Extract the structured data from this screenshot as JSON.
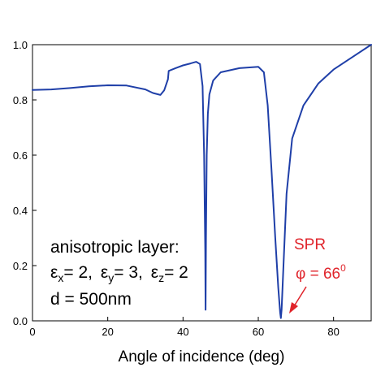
{
  "chart_data": {
    "type": "line",
    "title": "",
    "xlabel": "Angle of incidence (deg)",
    "ylabel": "",
    "xlim": [
      0,
      90
    ],
    "ylim": [
      0.0,
      1.0
    ],
    "x_ticks": [
      0,
      20,
      40,
      60,
      80
    ],
    "x_tick_labels": [
      "0",
      "20",
      "40",
      "60",
      "80"
    ],
    "y_ticks": [
      0.0,
      0.2,
      0.4,
      0.6,
      0.8,
      1.0
    ],
    "y_tick_labels": [
      "0.0",
      "0.2",
      "0.4",
      "0.6",
      "0.8",
      "1.0"
    ],
    "grid": false,
    "line_color": "#1f3fa8",
    "series": [
      {
        "x": [
          0,
          5,
          10,
          15,
          20,
          25,
          30,
          32,
          34,
          35,
          36,
          36.2,
          38,
          40,
          42,
          43.5,
          44.5,
          45.2,
          45.6,
          45.9,
          46.0,
          46.1,
          46.3,
          46.6,
          47,
          48,
          50,
          55,
          60,
          61.5,
          62.5,
          63.5,
          64.5,
          65.3,
          65.8,
          66.0,
          66.2,
          66.7,
          67.5,
          69,
          72,
          76,
          80,
          85,
          90
        ],
        "y": [
          0.836,
          0.838,
          0.843,
          0.849,
          0.853,
          0.852,
          0.838,
          0.825,
          0.818,
          0.835,
          0.875,
          0.905,
          0.915,
          0.925,
          0.932,
          0.938,
          0.93,
          0.85,
          0.6,
          0.25,
          0.04,
          0.3,
          0.6,
          0.75,
          0.82,
          0.87,
          0.9,
          0.915,
          0.92,
          0.9,
          0.78,
          0.55,
          0.3,
          0.12,
          0.03,
          0.01,
          0.04,
          0.2,
          0.46,
          0.66,
          0.78,
          0.86,
          0.91,
          0.955,
          1.0
        ]
      }
    ],
    "annotations": {
      "layer_line1": "anisotropic layer:",
      "eps_x_symbol": "ε",
      "eps_x_sub": "x",
      "eps_x_val": "= 2,",
      "eps_y_symbol": "ε",
      "eps_y_sub": "y",
      "eps_y_val": "= 3,",
      "eps_z_symbol": "ε",
      "eps_z_sub": "z",
      "eps_z_val": "= 2",
      "thickness": "d = 500nm",
      "spr_label": "SPR",
      "phi_text": "φ = 66",
      "phi_sup": "0",
      "arrow_color": "#e0242b"
    }
  }
}
